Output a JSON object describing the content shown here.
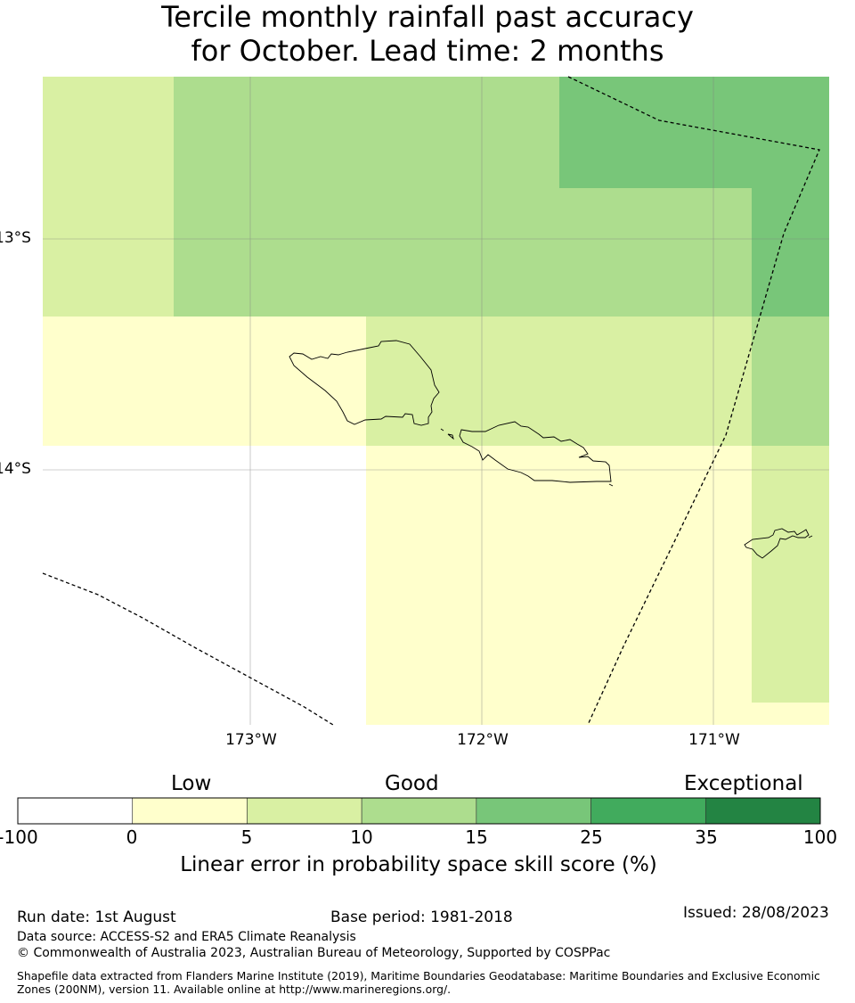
{
  "title_line1": "Tercile monthly rainfall past accuracy",
  "title_line2": "for October. Lead time: 2 months",
  "map": {
    "lon_ticks": [
      "173°W",
      "172°W",
      "171°W"
    ],
    "lat_ticks": [
      "13°S",
      "14°S"
    ],
    "grid": true,
    "boundaries": "Maritime boundaries (dashed)",
    "cells_score_class": [
      {
        "name": "cell-west-north",
        "class": "5-10"
      },
      {
        "name": "cell-central-north",
        "class": "10-15"
      },
      {
        "name": "cell-northeast",
        "class": "15-25"
      },
      {
        "name": "cell-east-mid",
        "class": "15-25"
      },
      {
        "name": "cell-east-lower",
        "class": "10-15"
      },
      {
        "name": "cell-southeast",
        "class": "5-10"
      },
      {
        "name": "cell-west-mid",
        "class": "0-5"
      },
      {
        "name": "cell-central-mid",
        "class": "5-10"
      },
      {
        "name": "cell-south-central",
        "class": "0-5"
      },
      {
        "name": "cell-southwest",
        "class": "-100-0"
      }
    ]
  },
  "colorbar": {
    "categories": [
      "Low",
      "Good",
      "Exceptional"
    ],
    "ticks": [
      "-100",
      "0",
      "5",
      "10",
      "15",
      "25",
      "35",
      "100"
    ],
    "colors": [
      "#ffffff",
      "#ffffcc",
      "#d9f0a3",
      "#addd8e",
      "#78c679",
      "#41ab5d",
      "#238443"
    ],
    "label": "Linear error in probability space skill score (%)"
  },
  "footer": {
    "run_date": "Run date: 1st August",
    "base_period": "Base period: 1981-2018",
    "issued": "Issued: 28/08/2023",
    "data_source": "Data source: ACCESS-S2 and ERA5 Climate Reanalysis",
    "copyright": "© Commonwealth of Australia 2023, Australian Bureau of Meteorology, Supported by COSPPac",
    "shapefile": "Shapefile data extracted from Flanders Marine Institute (2019), Maritime Boundaries Geodatabase: Maritime Boundaries and Exclusive Economic Zones (200NM), version 11. Available online at http://www.marineregions.org/."
  }
}
